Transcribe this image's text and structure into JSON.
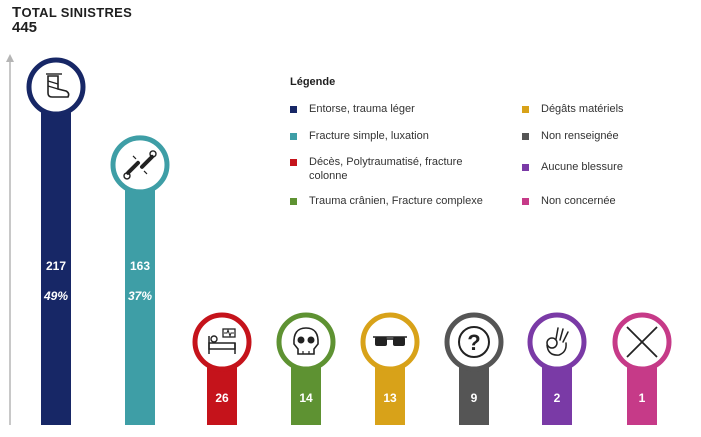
{
  "header": {
    "title_first": "T",
    "title_rest": "OTAL SINISTRES",
    "total": "445"
  },
  "legend": {
    "title": "Légende"
  },
  "chart_data": {
    "type": "bar",
    "title": "TOTAL SINISTRES",
    "total": 445,
    "categories": [
      "Entorse, trauma léger",
      "Fracture simple, luxation",
      "Décès, Polytraumatisé, fracture colonne",
      "Trauma crânien, Fracture complexe",
      "Dégâts matériels",
      "Non renseignée",
      "Aucune blessure",
      "Non concernée"
    ],
    "values": [
      217,
      163,
      26,
      14,
      13,
      9,
      2,
      1
    ],
    "value_labels": [
      "217",
      "163",
      "26",
      "14",
      "13",
      "9",
      "2",
      "1"
    ],
    "percent_labels": [
      "49%",
      "37%",
      "",
      "",
      "",
      "",
      "",
      ""
    ],
    "colors": [
      "#172766",
      "#3e9ea6",
      "#c5131b",
      "#5e9232",
      "#d8a219",
      "#555555",
      "#7a3aa6",
      "#c63a88"
    ],
    "icons": [
      "foot-bandage-icon",
      "broken-bone-icon",
      "hospital-bed-icon",
      "skull-face-icon",
      "sunglasses-icon",
      "question-mark-icon",
      "ok-hand-icon",
      "cross-icon"
    ],
    "legend_position": "top-right",
    "grid": false
  }
}
